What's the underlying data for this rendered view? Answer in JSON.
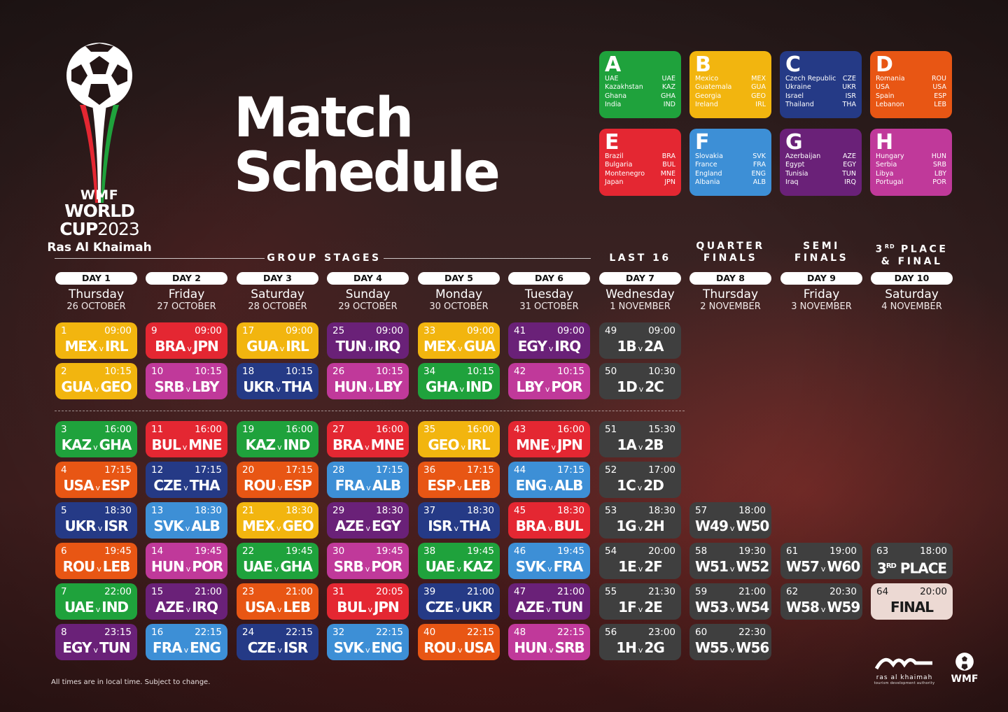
{
  "logo": {
    "wmf": "WMF",
    "world": "WORLD",
    "cup": "CUP",
    "year": "2023",
    "city": "Ras Al Khaimah"
  },
  "title": {
    "line1": "Match",
    "line2": "Schedule"
  },
  "colors": {
    "yellow": "#f2b50f",
    "red": "#e42732",
    "green": "#1fa23c",
    "navy": "#253a86",
    "purple": "#6a2178",
    "orange": "#e85614",
    "blue": "#3d8fd6",
    "magenta": "#c0399a",
    "gray": "#3f3f3f",
    "cream": "#ecd9d3"
  },
  "groups": [
    {
      "letter": "A",
      "color": "#1fa23c",
      "teams": [
        [
          "UAE",
          "UAE"
        ],
        [
          "Kazakhstan",
          "KAZ"
        ],
        [
          "Ghana",
          "GHA"
        ],
        [
          "India",
          "IND"
        ]
      ]
    },
    {
      "letter": "B",
      "color": "#f2b50f",
      "teams": [
        [
          "Mexico",
          "MEX"
        ],
        [
          "Guatemala",
          "GUA"
        ],
        [
          "Georgia",
          "GEO"
        ],
        [
          "Ireland",
          "IRL"
        ]
      ]
    },
    {
      "letter": "C",
      "color": "#253a86",
      "teams": [
        [
          "Czech Republic",
          "CZE"
        ],
        [
          "Ukraine",
          "UKR"
        ],
        [
          "Israel",
          "ISR"
        ],
        [
          "Thailand",
          "THA"
        ]
      ]
    },
    {
      "letter": "D",
      "color": "#e85614",
      "teams": [
        [
          "Romania",
          "ROU"
        ],
        [
          "USA",
          "USA"
        ],
        [
          "Spain",
          "ESP"
        ],
        [
          "Lebanon",
          "LEB"
        ]
      ]
    },
    {
      "letter": "E",
      "color": "#e42732",
      "teams": [
        [
          "Brazil",
          "BRA"
        ],
        [
          "Bulgaria",
          "BUL"
        ],
        [
          "Montenegro",
          "MNE"
        ],
        [
          "Japan",
          "JPN"
        ]
      ]
    },
    {
      "letter": "F",
      "color": "#3d8fd6",
      "teams": [
        [
          "Slovakia",
          "SVK"
        ],
        [
          "France",
          "FRA"
        ],
        [
          "England",
          "ENG"
        ],
        [
          "Albania",
          "ALB"
        ]
      ]
    },
    {
      "letter": "G",
      "color": "#6a2178",
      "teams": [
        [
          "Azerbaijan",
          "AZE"
        ],
        [
          "Egypt",
          "EGY"
        ],
        [
          "Tunisia",
          "TUN"
        ],
        [
          "Iraq",
          "IRQ"
        ]
      ]
    },
    {
      "letter": "H",
      "color": "#c0399a",
      "teams": [
        [
          "Hungary",
          "HUN"
        ],
        [
          "Serbia",
          "SRB"
        ],
        [
          "Libya",
          "LBY"
        ],
        [
          "Portugal",
          "POR"
        ]
      ]
    }
  ],
  "stages": {
    "group": "GROUP STAGES",
    "last16": "LAST 16",
    "qf1": "QUARTER",
    "qf2": "FINALS",
    "sf1": "SEMI",
    "sf2": "FINALS",
    "tp_pre": "3",
    "tp_sup": "RD",
    "tp_post": "PLACE",
    "tp2": "& FINAL"
  },
  "days": [
    {
      "label": "DAY 1",
      "name": "Thursday",
      "date": "26 OCTOBER"
    },
    {
      "label": "DAY 2",
      "name": "Friday",
      "date": "27 OCTOBER"
    },
    {
      "label": "DAY 3",
      "name": "Saturday",
      "date": "28 OCTOBER"
    },
    {
      "label": "DAY 4",
      "name": "Sunday",
      "date": "29 OCTOBER"
    },
    {
      "label": "DAY 5",
      "name": "Monday",
      "date": "30 OCTOBER"
    },
    {
      "label": "DAY 6",
      "name": "Tuesday",
      "date": "31 OCTOBER"
    },
    {
      "label": "DAY 7",
      "name": "Wednesday",
      "date": "1 NOVEMBER"
    },
    {
      "label": "DAY 8",
      "name": "Thursday",
      "date": "2 NOVEMBER"
    },
    {
      "label": "DAY 9",
      "name": "Friday",
      "date": "3 NOVEMBER"
    },
    {
      "label": "DAY 10",
      "name": "Saturday",
      "date": "4 NOVEMBER"
    }
  ],
  "matches": [
    {
      "col": 0,
      "row": 0,
      "num": "1",
      "time": "09:00",
      "home": "MEX",
      "away": "IRL",
      "color": "#f2b50f"
    },
    {
      "col": 0,
      "row": 1,
      "num": "2",
      "time": "10:15",
      "home": "GUA",
      "away": "GEO",
      "color": "#f2b50f"
    },
    {
      "col": 0,
      "row": 2,
      "num": "3",
      "time": "16:00",
      "home": "KAZ",
      "away": "GHA",
      "color": "#1fa23c"
    },
    {
      "col": 0,
      "row": 3,
      "num": "4",
      "time": "17:15",
      "home": "USA",
      "away": "ESP",
      "color": "#e85614"
    },
    {
      "col": 0,
      "row": 4,
      "num": "5",
      "time": "18:30",
      "home": "UKR",
      "away": "ISR",
      "color": "#253a86"
    },
    {
      "col": 0,
      "row": 5,
      "num": "6",
      "time": "19:45",
      "home": "ROU",
      "away": "LEB",
      "color": "#e85614"
    },
    {
      "col": 0,
      "row": 6,
      "num": "7",
      "time": "22:00",
      "home": "UAE",
      "away": "IND",
      "color": "#1fa23c"
    },
    {
      "col": 0,
      "row": 7,
      "num": "8",
      "time": "23:15",
      "home": "EGY",
      "away": "TUN",
      "color": "#6a2178"
    },
    {
      "col": 1,
      "row": 0,
      "num": "9",
      "time": "09:00",
      "home": "BRA",
      "away": "JPN",
      "color": "#e42732"
    },
    {
      "col": 1,
      "row": 1,
      "num": "10",
      "time": "10:15",
      "home": "SRB",
      "away": "LBY",
      "color": "#c0399a"
    },
    {
      "col": 1,
      "row": 2,
      "num": "11",
      "time": "16:00",
      "home": "BUL",
      "away": "MNE",
      "color": "#e42732"
    },
    {
      "col": 1,
      "row": 3,
      "num": "12",
      "time": "17:15",
      "home": "CZE",
      "away": "THA",
      "color": "#253a86"
    },
    {
      "col": 1,
      "row": 4,
      "num": "13",
      "time": "18:30",
      "home": "SVK",
      "away": "ALB",
      "color": "#3d8fd6"
    },
    {
      "col": 1,
      "row": 5,
      "num": "14",
      "time": "19:45",
      "home": "HUN",
      "away": "POR",
      "color": "#c0399a"
    },
    {
      "col": 1,
      "row": 6,
      "num": "15",
      "time": "21:00",
      "home": "AZE",
      "away": "IRQ",
      "color": "#6a2178"
    },
    {
      "col": 1,
      "row": 7,
      "num": "16",
      "time": "22:15",
      "home": "FRA",
      "away": "ENG",
      "color": "#3d8fd6"
    },
    {
      "col": 2,
      "row": 0,
      "num": "17",
      "time": "09:00",
      "home": "GUA",
      "away": "IRL",
      "color": "#f2b50f"
    },
    {
      "col": 2,
      "row": 1,
      "num": "18",
      "time": "10:15",
      "home": "UKR",
      "away": "THA",
      "color": "#253a86"
    },
    {
      "col": 2,
      "row": 2,
      "num": "19",
      "time": "16:00",
      "home": "KAZ",
      "away": "IND",
      "color": "#1fa23c"
    },
    {
      "col": 2,
      "row": 3,
      "num": "20",
      "time": "17:15",
      "home": "ROU",
      "away": "ESP",
      "color": "#e85614"
    },
    {
      "col": 2,
      "row": 4,
      "num": "21",
      "time": "18:30",
      "home": "MEX",
      "away": "GEO",
      "color": "#f2b50f"
    },
    {
      "col": 2,
      "row": 5,
      "num": "22",
      "time": "19:45",
      "home": "UAE",
      "away": "GHA",
      "color": "#1fa23c"
    },
    {
      "col": 2,
      "row": 6,
      "num": "23",
      "time": "21:00",
      "home": "USA",
      "away": "LEB",
      "color": "#e85614"
    },
    {
      "col": 2,
      "row": 7,
      "num": "24",
      "time": "22:15",
      "home": "CZE",
      "away": "ISR",
      "color": "#253a86"
    },
    {
      "col": 3,
      "row": 0,
      "num": "25",
      "time": "09:00",
      "home": "TUN",
      "away": "IRQ",
      "color": "#6a2178"
    },
    {
      "col": 3,
      "row": 1,
      "num": "26",
      "time": "10:15",
      "home": "HUN",
      "away": "LBY",
      "color": "#c0399a"
    },
    {
      "col": 3,
      "row": 2,
      "num": "27",
      "time": "16:00",
      "home": "BRA",
      "away": "MNE",
      "color": "#e42732"
    },
    {
      "col": 3,
      "row": 3,
      "num": "28",
      "time": "17:15",
      "home": "FRA",
      "away": "ALB",
      "color": "#3d8fd6"
    },
    {
      "col": 3,
      "row": 4,
      "num": "29",
      "time": "18:30",
      "home": "AZE",
      "away": "EGY",
      "color": "#6a2178"
    },
    {
      "col": 3,
      "row": 5,
      "num": "30",
      "time": "19:45",
      "home": "SRB",
      "away": "POR",
      "color": "#c0399a"
    },
    {
      "col": 3,
      "row": 6,
      "num": "31",
      "time": "20:05",
      "home": "BUL",
      "away": "JPN",
      "color": "#e42732"
    },
    {
      "col": 3,
      "row": 7,
      "num": "32",
      "time": "22:15",
      "home": "SVK",
      "away": "ENG",
      "color": "#3d8fd6"
    },
    {
      "col": 4,
      "row": 0,
      "num": "33",
      "time": "09:00",
      "home": "MEX",
      "away": "GUA",
      "color": "#f2b50f"
    },
    {
      "col": 4,
      "row": 1,
      "num": "34",
      "time": "10:15",
      "home": "GHA",
      "away": "IND",
      "color": "#1fa23c"
    },
    {
      "col": 4,
      "row": 2,
      "num": "35",
      "time": "16:00",
      "home": "GEO",
      "away": "IRL",
      "color": "#f2b50f"
    },
    {
      "col": 4,
      "row": 3,
      "num": "36",
      "time": "17:15",
      "home": "ESP",
      "away": "LEB",
      "color": "#e85614"
    },
    {
      "col": 4,
      "row": 4,
      "num": "37",
      "time": "18:30",
      "home": "ISR",
      "away": "THA",
      "color": "#253a86"
    },
    {
      "col": 4,
      "row": 5,
      "num": "38",
      "time": "19:45",
      "home": "UAE",
      "away": "KAZ",
      "color": "#1fa23c"
    },
    {
      "col": 4,
      "row": 6,
      "num": "39",
      "time": "21:00",
      "home": "CZE",
      "away": "UKR",
      "color": "#253a86"
    },
    {
      "col": 4,
      "row": 7,
      "num": "40",
      "time": "22:15",
      "home": "ROU",
      "away": "USA",
      "color": "#e85614"
    },
    {
      "col": 5,
      "row": 0,
      "num": "41",
      "time": "09:00",
      "home": "EGY",
      "away": "IRQ",
      "color": "#6a2178"
    },
    {
      "col": 5,
      "row": 1,
      "num": "42",
      "time": "10:15",
      "home": "LBY",
      "away": "POR",
      "color": "#c0399a"
    },
    {
      "col": 5,
      "row": 2,
      "num": "43",
      "time": "16:00",
      "home": "MNE",
      "away": "JPN",
      "color": "#e42732"
    },
    {
      "col": 5,
      "row": 3,
      "num": "44",
      "time": "17:15",
      "home": "ENG",
      "away": "ALB",
      "color": "#3d8fd6"
    },
    {
      "col": 5,
      "row": 4,
      "num": "45",
      "time": "18:30",
      "home": "BRA",
      "away": "BUL",
      "color": "#e42732"
    },
    {
      "col": 5,
      "row": 5,
      "num": "46",
      "time": "19:45",
      "home": "SVK",
      "away": "FRA",
      "color": "#3d8fd6"
    },
    {
      "col": 5,
      "row": 6,
      "num": "47",
      "time": "21:00",
      "home": "AZE",
      "away": "TUN",
      "color": "#6a2178"
    },
    {
      "col": 5,
      "row": 7,
      "num": "48",
      "time": "22:15",
      "home": "HUN",
      "away": "SRB",
      "color": "#c0399a"
    },
    {
      "col": 6,
      "row": 0,
      "num": "49",
      "time": "09:00",
      "home": "1B",
      "away": "2A",
      "color": "#3f3f3f"
    },
    {
      "col": 6,
      "row": 1,
      "num": "50",
      "time": "10:30",
      "home": "1D",
      "away": "2C",
      "color": "#3f3f3f"
    },
    {
      "col": 6,
      "row": 2,
      "num": "51",
      "time": "15:30",
      "home": "1A",
      "away": "2B",
      "color": "#3f3f3f"
    },
    {
      "col": 6,
      "row": 3,
      "num": "52",
      "time": "17:00",
      "home": "1C",
      "away": "2D",
      "color": "#3f3f3f"
    },
    {
      "col": 6,
      "row": 4,
      "num": "53",
      "time": "18:30",
      "home": "1G",
      "away": "2H",
      "color": "#3f3f3f"
    },
    {
      "col": 6,
      "row": 5,
      "num": "54",
      "time": "20:00",
      "home": "1E",
      "away": "2F",
      "color": "#3f3f3f"
    },
    {
      "col": 6,
      "row": 6,
      "num": "55",
      "time": "21:30",
      "home": "1F",
      "away": "2E",
      "color": "#3f3f3f"
    },
    {
      "col": 6,
      "row": 7,
      "num": "56",
      "time": "23:00",
      "home": "1H",
      "away": "2G",
      "color": "#3f3f3f"
    },
    {
      "col": 7,
      "row": 4,
      "num": "57",
      "time": "18:00",
      "home": "W49",
      "away": "W50",
      "color": "#3f3f3f"
    },
    {
      "col": 7,
      "row": 5,
      "num": "58",
      "time": "19:30",
      "home": "W51",
      "away": "W52",
      "color": "#3f3f3f"
    },
    {
      "col": 7,
      "row": 6,
      "num": "59",
      "time": "21:00",
      "home": "W53",
      "away": "W54",
      "color": "#3f3f3f"
    },
    {
      "col": 7,
      "row": 7,
      "num": "60",
      "time": "22:30",
      "home": "W55",
      "away": "W56",
      "color": "#3f3f3f"
    },
    {
      "col": 8,
      "row": 5,
      "num": "61",
      "time": "19:00",
      "home": "W57",
      "away": "W60",
      "color": "#3f3f3f"
    },
    {
      "col": 8,
      "row": 6,
      "num": "62",
      "time": "20:30",
      "home": "W58",
      "away": "W59",
      "color": "#3f3f3f"
    },
    {
      "col": 9,
      "row": 5,
      "num": "63",
      "time": "18:00",
      "label": "3",
      "label_sup": "RD",
      "label_post": " PLACE",
      "color": "#3f3f3f"
    },
    {
      "col": 9,
      "row": 6,
      "num": "64",
      "time": "20:00",
      "label": "FINAL",
      "color": "#ecd9d3",
      "text_color": "#1a1a1a"
    }
  ],
  "versus": "v",
  "footnote": "All times are in local time. Subject to change.",
  "sponsor": {
    "name": "ras al khaimah",
    "tagline": "tourism development authority",
    "wmf": "WMF"
  }
}
